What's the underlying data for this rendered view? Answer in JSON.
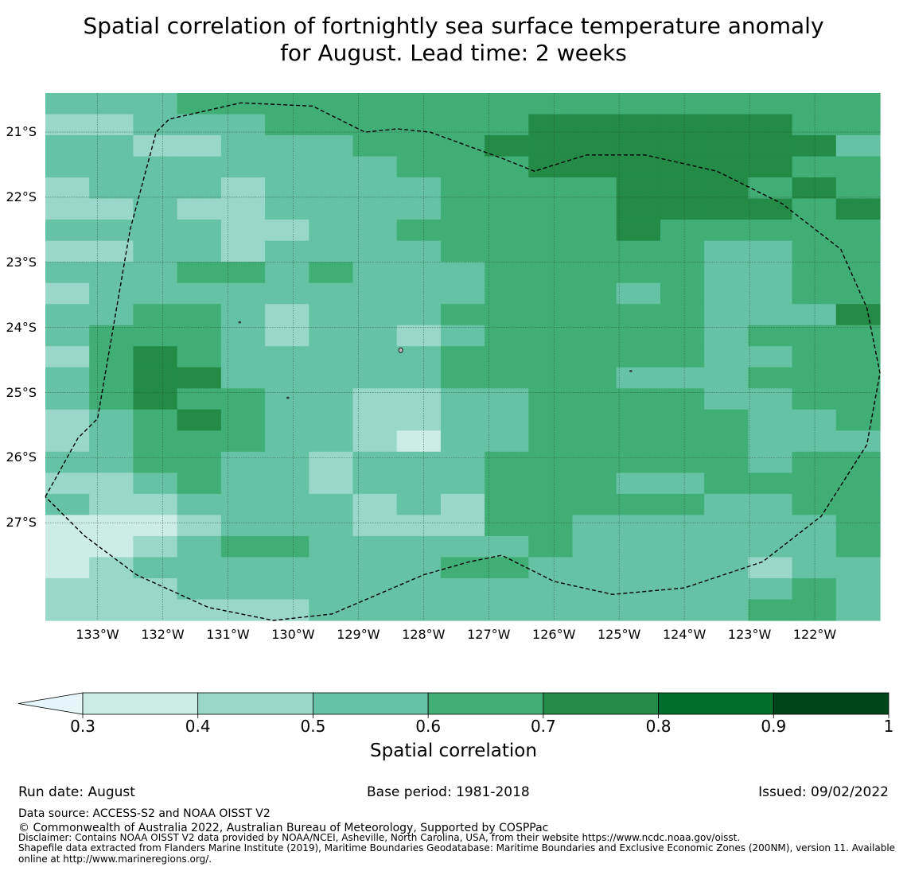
{
  "title": {
    "line1": "Spatial correlation of fortnightly sea surface temperature anomaly",
    "line2": "for August. Lead time: 2 weeks"
  },
  "map": {
    "lat_labels": [
      "21°S",
      "22°S",
      "23°S",
      "24°S",
      "25°S",
      "26°S",
      "27°S"
    ],
    "lon_labels": [
      "133°W",
      "132°W",
      "131°W",
      "130°W",
      "129°W",
      "128°W",
      "127°W",
      "126°W",
      "125°W",
      "124°W",
      "123°W",
      "122°W"
    ],
    "lon_range": [
      -133.8,
      -121.0
    ],
    "lat_range": [
      -28.5,
      -20.4
    ],
    "correlation_field_rows_north_to_south": [
      "3334444444444444444",
      "2233344444455555544",
      "3322333444555555553",
      "3333333344455555544",
      "2333233334444555454",
      "2232233334444555545",
      "3333223344444544444",
      "2233233334444443344",
      "3334434333444443344",
      "2333333333444343344",
      "3344323334444443335",
      "3444323323444443444",
      "2454333334444443344",
      "3455333334444333444",
      "3454433223344443344",
      "2345433223344444334",
      "2344433213344444333",
      "3344332333444444344",
      "2234332333444334444",
      "3223333232444443344",
      "1112333222443333334",
      "1123443333343333334",
      "1233333334433333233",
      "2223333333333333343",
      "2222223333333333443"
    ],
    "field_note": "digits are correlation classes: 0 = below 0.3, 1 = 0.3-0.4, 2 = 0.4-0.5, 3 = 0.5-0.6, 4 = 0.6-0.7, 5 = 0.7-0.8",
    "eez_boundary_lonlat": [
      [
        -133.8,
        -26.6
      ],
      [
        -133.3,
        -25.7
      ],
      [
        -133.0,
        -25.4
      ],
      [
        -132.5,
        -22.5
      ],
      [
        -132.1,
        -21.0
      ],
      [
        -131.9,
        -20.8
      ],
      [
        -130.8,
        -20.55
      ],
      [
        -129.7,
        -20.6
      ],
      [
        -128.9,
        -21.0
      ],
      [
        -128.4,
        -20.95
      ],
      [
        -127.9,
        -21.0
      ],
      [
        -126.8,
        -21.4
      ],
      [
        -126.3,
        -21.6
      ],
      [
        -125.5,
        -21.35
      ],
      [
        -124.6,
        -21.35
      ],
      [
        -123.5,
        -21.6
      ],
      [
        -122.5,
        -22.1
      ],
      [
        -121.6,
        -22.8
      ],
      [
        -121.2,
        -23.7
      ],
      [
        -121.0,
        -24.7
      ],
      [
        -121.2,
        -25.8
      ],
      [
        -121.9,
        -26.9
      ],
      [
        -122.8,
        -27.6
      ],
      [
        -124.0,
        -28.0
      ],
      [
        -125.1,
        -28.1
      ],
      [
        -126.0,
        -27.9
      ],
      [
        -126.8,
        -27.5
      ],
      [
        -127.3,
        -27.6
      ],
      [
        -128.0,
        -27.8
      ],
      [
        -128.7,
        -28.1
      ],
      [
        -129.4,
        -28.4
      ],
      [
        -130.3,
        -28.5
      ],
      [
        -131.3,
        -28.3
      ],
      [
        -132.4,
        -27.8
      ],
      [
        -133.2,
        -27.2
      ],
      [
        -133.8,
        -26.6
      ]
    ],
    "islands_lonlat": [
      [
        -128.35,
        -24.35
      ],
      [
        -130.82,
        -23.92
      ],
      [
        -130.08,
        -25.08
      ],
      [
        -124.82,
        -24.67
      ]
    ]
  },
  "colorbar": {
    "title": "Spatial correlation",
    "tick_labels": [
      "0.3",
      "0.4",
      "0.5",
      "0.6",
      "0.7",
      "0.8",
      "0.9",
      "1"
    ],
    "extend": "min",
    "colors": [
      "#e5f5f9",
      "#ccece6",
      "#99d8c9",
      "#66c2a4",
      "#41ae76",
      "#238b45",
      "#006d2c",
      "#00441b"
    ]
  },
  "footer": {
    "run_date": "Run date: August",
    "base_period": "Base period: 1981-2018",
    "issued": "Issued: 09/02/2022",
    "data_source": "Data source: ACCESS-S2 and NOAA OISST V2",
    "copyright": "© Commonwealth of Australia 2022, Australian Bureau of Meteorology, Supported by COSPPac",
    "disclaimer": "Disclaimer: Contains NOAA OISST V2 data provided by NOAA/NCEI, Asheville, North Carolina, USA, from their website https://www.ncdc.noaa.gov/oisst.",
    "shapefile_1": "Shapefile data extracted from Flanders Marine Institute (2019), Maritime Boundaries Geodatabase: Maritime Boundaries and Exclusive Economic Zones (200NM), version 11. Available",
    "shapefile_2": "online at http://www.marineregions.org/."
  }
}
